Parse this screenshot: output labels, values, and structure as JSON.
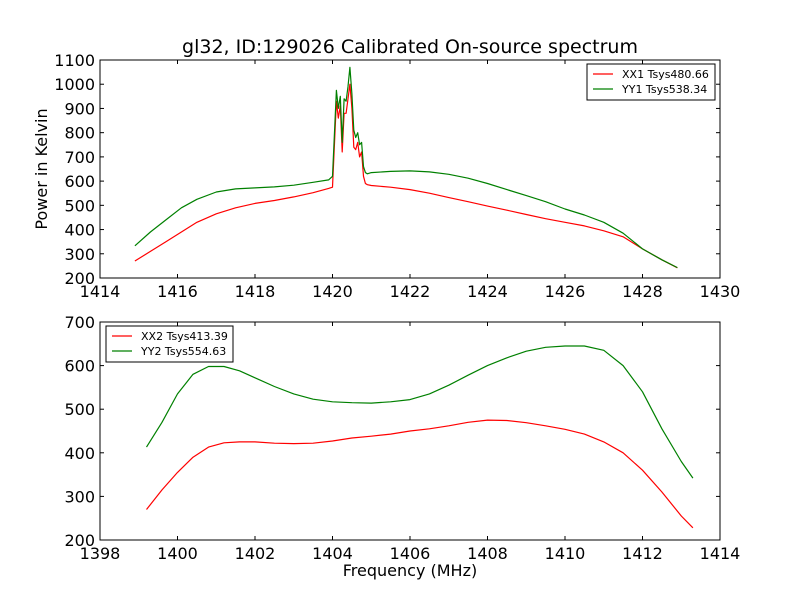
{
  "chart_data": [
    {
      "type": "line",
      "title": "gl32, ID:129026 Calibrated On-source spectrum",
      "xlabel": "",
      "ylabel": "Power in Kelvin",
      "xlim": [
        1414,
        1430
      ],
      "ylim": [
        200,
        1100
      ],
      "xticks": [
        1414,
        1416,
        1418,
        1420,
        1422,
        1424,
        1426,
        1428,
        1430
      ],
      "yticks": [
        200,
        300,
        400,
        500,
        600,
        700,
        800,
        900,
        1000,
        1100
      ],
      "legend_position": "top-right",
      "series": [
        {
          "name": "XX1 Tsys480.66",
          "color": "#ff0000",
          "x": [
            1414.9,
            1415.3,
            1415.7,
            1416.1,
            1416.5,
            1417.0,
            1417.5,
            1418.0,
            1418.5,
            1419.0,
            1419.5,
            1419.9,
            1420.0,
            1420.1,
            1420.15,
            1420.2,
            1420.25,
            1420.3,
            1420.35,
            1420.4,
            1420.45,
            1420.5,
            1420.55,
            1420.6,
            1420.65,
            1420.7,
            1420.75,
            1420.8,
            1420.85,
            1420.9,
            1421.0,
            1421.5,
            1422.0,
            1422.5,
            1423.0,
            1423.5,
            1424.0,
            1424.5,
            1425.0,
            1425.5,
            1426.0,
            1426.5,
            1427.0,
            1427.5,
            1428.0,
            1428.5,
            1428.9
          ],
          "y": [
            270,
            310,
            350,
            390,
            430,
            465,
            490,
            508,
            520,
            535,
            552,
            570,
            575,
            930,
            860,
            910,
            720,
            880,
            880,
            940,
            1000,
            900,
            740,
            730,
            760,
            700,
            720,
            620,
            590,
            585,
            582,
            575,
            565,
            550,
            532,
            515,
            497,
            480,
            462,
            445,
            430,
            415,
            395,
            370,
            320,
            275,
            242
          ]
        },
        {
          "name": "YY1 Tsys538.34",
          "color": "#008000",
          "x": [
            1414.9,
            1415.3,
            1415.7,
            1416.1,
            1416.5,
            1417.0,
            1417.5,
            1418.0,
            1418.5,
            1419.0,
            1419.5,
            1419.9,
            1420.0,
            1420.1,
            1420.15,
            1420.2,
            1420.25,
            1420.3,
            1420.35,
            1420.4,
            1420.45,
            1420.5,
            1420.55,
            1420.6,
            1420.65,
            1420.7,
            1420.75,
            1420.8,
            1420.85,
            1420.9,
            1421.0,
            1421.5,
            1422.0,
            1422.5,
            1423.0,
            1423.5,
            1424.0,
            1424.5,
            1425.0,
            1425.5,
            1426.0,
            1426.5,
            1427.0,
            1427.5,
            1428.0,
            1428.5,
            1428.9
          ],
          "y": [
            333,
            390,
            440,
            490,
            525,
            555,
            568,
            572,
            576,
            583,
            595,
            605,
            620,
            975,
            900,
            950,
            760,
            940,
            930,
            990,
            1070,
            960,
            810,
            780,
            800,
            750,
            760,
            660,
            635,
            630,
            635,
            640,
            642,
            638,
            628,
            612,
            590,
            565,
            540,
            515,
            485,
            460,
            430,
            385,
            320,
            275,
            243
          ]
        }
      ]
    },
    {
      "type": "line",
      "title": "",
      "xlabel": "Frequency (MHz)",
      "ylabel": "",
      "xlim": [
        1398,
        1414
      ],
      "ylim": [
        200,
        700
      ],
      "xticks": [
        1398,
        1400,
        1402,
        1404,
        1406,
        1408,
        1410,
        1412,
        1414
      ],
      "yticks": [
        200,
        300,
        400,
        500,
        600,
        700
      ],
      "legend_position": "top-left",
      "series": [
        {
          "name": "XX2 Tsys413.39",
          "color": "#ff0000",
          "x": [
            1399.2,
            1399.6,
            1400.0,
            1400.4,
            1400.8,
            1401.2,
            1401.6,
            1402.0,
            1402.5,
            1403.0,
            1403.5,
            1404.0,
            1404.5,
            1405.0,
            1405.5,
            1406.0,
            1406.5,
            1407.0,
            1407.5,
            1408.0,
            1408.5,
            1409.0,
            1409.5,
            1410.0,
            1410.5,
            1411.0,
            1411.5,
            1412.0,
            1412.5,
            1413.0,
            1413.3
          ],
          "y": [
            270,
            315,
            355,
            390,
            413,
            423,
            425,
            425,
            422,
            421,
            422,
            427,
            434,
            438,
            443,
            450,
            455,
            462,
            470,
            475,
            474,
            469,
            462,
            454,
            443,
            425,
            400,
            360,
            310,
            255,
            228
          ]
        },
        {
          "name": "YY2 Tsys554.63",
          "color": "#008000",
          "x": [
            1399.2,
            1399.6,
            1400.0,
            1400.4,
            1400.8,
            1401.2,
            1401.6,
            1402.0,
            1402.5,
            1403.0,
            1403.5,
            1404.0,
            1404.5,
            1405.0,
            1405.5,
            1406.0,
            1406.5,
            1407.0,
            1407.5,
            1408.0,
            1408.5,
            1409.0,
            1409.5,
            1410.0,
            1410.5,
            1411.0,
            1411.5,
            1412.0,
            1412.5,
            1413.0,
            1413.3
          ],
          "y": [
            413,
            470,
            535,
            580,
            598,
            598,
            588,
            572,
            552,
            535,
            523,
            517,
            515,
            514,
            517,
            522,
            535,
            555,
            578,
            600,
            618,
            633,
            642,
            645,
            645,
            635,
            600,
            540,
            455,
            380,
            342
          ]
        }
      ]
    }
  ]
}
